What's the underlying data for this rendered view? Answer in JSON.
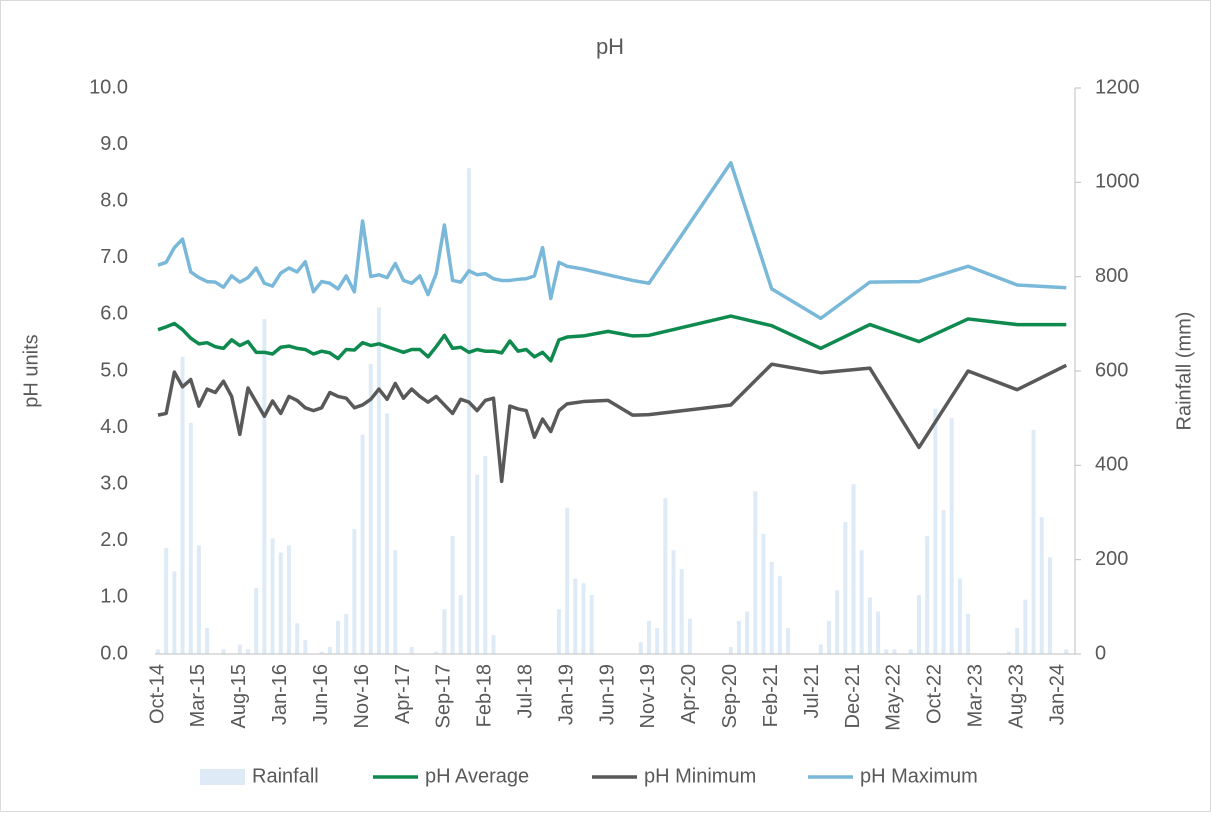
{
  "chart_data": {
    "type": "combo",
    "title": "pH",
    "y_label": "pH units",
    "y2_label": "Rainfall (mm)",
    "connect_gaps": true,
    "categories": [
      "Oct-14",
      null,
      null,
      null,
      null,
      "Mar-15",
      null,
      null,
      null,
      null,
      "Aug-15",
      null,
      null,
      null,
      null,
      "Jan-16",
      null,
      null,
      null,
      null,
      "Jun-16",
      null,
      null,
      null,
      null,
      "Nov-16",
      null,
      null,
      null,
      null,
      "Apr-17",
      null,
      null,
      null,
      null,
      "Sep-17",
      null,
      null,
      null,
      null,
      "Feb-18",
      null,
      null,
      null,
      null,
      "Jul-18",
      null,
      null,
      null,
      null,
      "Jan-19",
      null,
      null,
      null,
      null,
      "Jun-19",
      null,
      null,
      null,
      null,
      "Nov-19",
      null,
      null,
      null,
      null,
      "Apr-20",
      null,
      null,
      null,
      null,
      "Sep-20",
      null,
      null,
      null,
      null,
      "Feb-21",
      null,
      null,
      null,
      null,
      "Jul-21",
      null,
      null,
      null,
      null,
      "Dec-21",
      null,
      null,
      null,
      null,
      "May-22",
      null,
      null,
      null,
      null,
      "Oct-22",
      null,
      null,
      null,
      null,
      "Mar-23",
      null,
      null,
      null,
      null,
      "Aug-23",
      null,
      null,
      null,
      null,
      "Jan-24",
      null
    ],
    "series": [
      {
        "name": "Rainfall",
        "type": "bar",
        "axis": "y2",
        "color": "#deebf7",
        "values": [
          10,
          225,
          175,
          630,
          490,
          230,
          55,
          0,
          10,
          0,
          20,
          10,
          140,
          710,
          245,
          215,
          230,
          65,
          30,
          0,
          5,
          15,
          70,
          85,
          265,
          465,
          615,
          735,
          510,
          220,
          0,
          15,
          0,
          0,
          5,
          95,
          250,
          125,
          1030,
          380,
          420,
          40,
          0,
          0,
          0,
          0,
          0,
          0,
          0,
          95,
          310,
          160,
          150,
          125,
          0,
          0,
          0,
          0,
          0,
          25,
          70,
          55,
          330,
          220,
          180,
          75,
          0,
          0,
          0,
          0,
          15,
          70,
          90,
          345,
          255,
          195,
          165,
          55,
          0,
          0,
          0,
          20,
          70,
          135,
          280,
          360,
          220,
          120,
          90,
          10,
          10,
          0,
          10,
          125,
          250,
          520,
          305,
          500,
          160,
          85,
          0,
          0,
          0,
          0,
          5,
          55,
          115,
          475,
          290,
          205,
          0,
          10
        ]
      },
      {
        "name": "pH Average",
        "type": "line",
        "color": "#0e8a4e",
        "values": [
          5.73,
          5.78,
          5.84,
          5.73,
          5.58,
          5.48,
          5.5,
          5.43,
          5.4,
          5.55,
          5.45,
          5.52,
          5.33,
          5.33,
          5.3,
          5.42,
          5.44,
          5.4,
          5.38,
          5.3,
          5.35,
          5.32,
          5.22,
          5.38,
          5.37,
          5.5,
          5.45,
          5.48,
          5.43,
          5.38,
          5.33,
          5.38,
          5.38,
          5.25,
          5.43,
          5.63,
          5.4,
          5.42,
          5.33,
          5.38,
          5.35,
          5.35,
          5.32,
          5.53,
          5.35,
          5.38,
          5.25,
          5.33,
          5.18,
          5.55,
          5.6,
          null,
          5.62,
          null,
          null,
          5.7,
          null,
          null,
          5.62,
          null,
          5.63,
          null,
          null,
          null,
          null,
          null,
          null,
          null,
          null,
          null,
          5.97,
          null,
          null,
          null,
          null,
          5.8,
          null,
          null,
          null,
          null,
          null,
          5.4,
          null,
          null,
          null,
          null,
          null,
          5.82,
          null,
          null,
          null,
          null,
          null,
          5.52,
          null,
          null,
          null,
          null,
          null,
          5.92,
          null,
          null,
          null,
          null,
          null,
          5.82,
          null,
          null,
          null,
          null,
          null,
          5.82
        ]
      },
      {
        "name": "pH Minimum",
        "type": "line",
        "color": "#595959",
        "values": [
          4.22,
          4.25,
          4.98,
          4.72,
          4.85,
          4.38,
          4.68,
          4.62,
          4.82,
          4.55,
          3.88,
          4.7,
          4.45,
          4.2,
          4.47,
          4.25,
          4.55,
          4.48,
          4.35,
          4.3,
          4.35,
          4.62,
          4.55,
          4.52,
          4.35,
          4.4,
          4.5,
          4.68,
          4.5,
          4.78,
          4.52,
          4.68,
          4.55,
          4.45,
          4.55,
          4.4,
          4.25,
          4.5,
          4.45,
          4.3,
          4.48,
          4.52,
          3.05,
          4.38,
          4.33,
          4.3,
          3.83,
          4.15,
          3.93,
          4.3,
          4.42,
          null,
          4.46,
          null,
          null,
          4.48,
          null,
          null,
          4.22,
          null,
          4.23,
          null,
          null,
          null,
          null,
          null,
          null,
          null,
          null,
          null,
          4.4,
          null,
          null,
          null,
          null,
          5.12,
          null,
          null,
          null,
          null,
          null,
          4.97,
          null,
          null,
          null,
          null,
          null,
          5.05,
          null,
          null,
          null,
          null,
          null,
          3.65,
          null,
          null,
          null,
          null,
          null,
          5.0,
          null,
          null,
          null,
          null,
          null,
          4.67,
          null,
          null,
          null,
          null,
          null,
          5.1
        ]
      },
      {
        "name": "pH Maximum",
        "type": "line",
        "color": "#7ab8d9",
        "values": [
          6.87,
          6.92,
          7.18,
          7.33,
          6.75,
          6.65,
          6.58,
          6.57,
          6.48,
          6.68,
          6.57,
          6.65,
          6.82,
          6.55,
          6.5,
          6.73,
          6.82,
          6.75,
          6.93,
          6.4,
          6.58,
          6.55,
          6.45,
          6.68,
          6.4,
          7.65,
          6.67,
          6.7,
          6.65,
          6.9,
          6.6,
          6.55,
          6.68,
          6.35,
          6.72,
          7.58,
          6.6,
          6.57,
          6.77,
          6.7,
          6.72,
          6.63,
          6.6,
          6.6,
          6.62,
          6.63,
          6.68,
          7.18,
          6.28,
          6.92,
          6.85,
          null,
          6.8,
          null,
          null,
          6.7,
          null,
          null,
          6.6,
          null,
          6.55,
          null,
          null,
          null,
          null,
          null,
          null,
          null,
          null,
          null,
          8.68,
          null,
          null,
          null,
          null,
          6.45,
          null,
          null,
          null,
          null,
          null,
          5.93,
          null,
          null,
          null,
          null,
          null,
          6.57,
          null,
          null,
          null,
          null,
          null,
          6.58,
          null,
          null,
          null,
          null,
          null,
          6.85,
          null,
          null,
          null,
          null,
          null,
          6.52,
          null,
          null,
          null,
          null,
          null,
          6.47
        ]
      }
    ],
    "ylim": [
      0,
      10
    ],
    "yticks": [
      {
        "value": 0,
        "label": "0.0"
      },
      {
        "value": 1,
        "label": "1.0"
      },
      {
        "value": 2,
        "label": "2.0"
      },
      {
        "value": 3,
        "label": "3.0"
      },
      {
        "value": 4,
        "label": "4.0"
      },
      {
        "value": 5,
        "label": "5.0"
      },
      {
        "value": 6,
        "label": "6.0"
      },
      {
        "value": 7,
        "label": "7.0"
      },
      {
        "value": 8,
        "label": "8.0"
      },
      {
        "value": 9,
        "label": "9.0"
      },
      {
        "value": 10,
        "label": "10.0"
      }
    ],
    "y2lim": [
      0,
      1200
    ],
    "y2ticks": [
      0,
      200,
      400,
      600,
      800,
      1000,
      1200
    ],
    "grid": false,
    "legend": "bottom"
  }
}
